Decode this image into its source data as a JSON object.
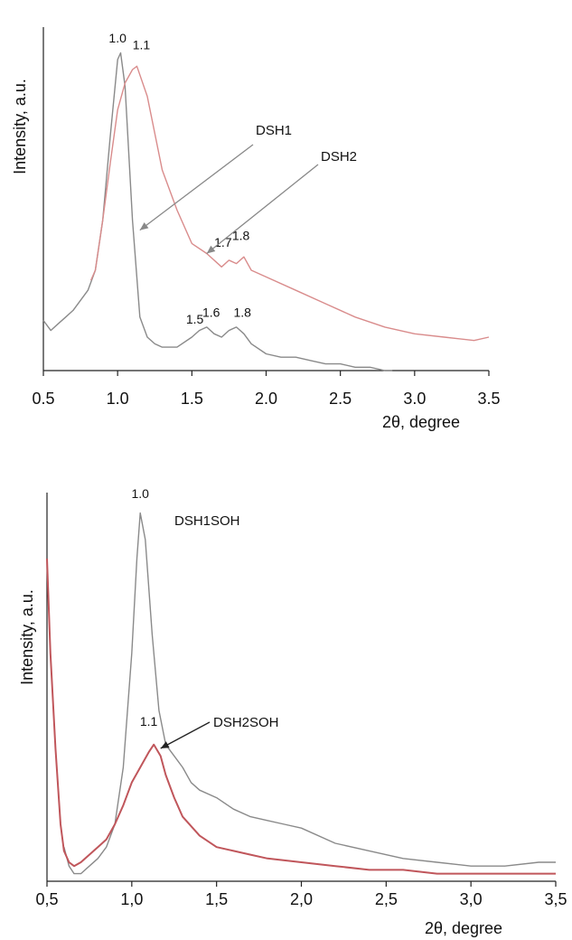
{
  "chart_data": [
    {
      "type": "line",
      "xlabel": "2θ, degree",
      "ylabel": "Intensity, a.u.",
      "xlim": [
        0.5,
        3.5
      ],
      "ylim": [
        0,
        1.0
      ],
      "x_ticks": [
        "0.5",
        "1.0",
        "1.5",
        "2.0",
        "2.5",
        "3.0",
        "3.5"
      ],
      "grid": false,
      "colors": {
        "DSH1": "#8a8a8a",
        "DSH2": "#d98c8c"
      },
      "series": [
        {
          "name": "DSH1",
          "x": [
            0.5,
            0.55,
            0.6,
            0.65,
            0.7,
            0.75,
            0.8,
            0.85,
            0.9,
            0.95,
            1.0,
            1.02,
            1.05,
            1.1,
            1.15,
            1.2,
            1.25,
            1.3,
            1.4,
            1.5,
            1.55,
            1.6,
            1.65,
            1.7,
            1.75,
            1.8,
            1.85,
            1.9,
            2.0,
            2.1,
            2.2,
            2.3,
            2.4,
            2.5,
            2.6,
            2.7,
            2.8,
            2.85
          ],
          "y": [
            0.15,
            0.12,
            0.14,
            0.16,
            0.18,
            0.21,
            0.24,
            0.3,
            0.45,
            0.7,
            0.93,
            0.95,
            0.85,
            0.45,
            0.16,
            0.1,
            0.08,
            0.07,
            0.07,
            0.1,
            0.12,
            0.13,
            0.11,
            0.1,
            0.12,
            0.13,
            0.11,
            0.08,
            0.05,
            0.04,
            0.04,
            0.03,
            0.02,
            0.02,
            0.01,
            0.01,
            0.0,
            0.0
          ]
        },
        {
          "name": "DSH2",
          "x": [
            0.82,
            0.85,
            0.9,
            0.95,
            1.0,
            1.05,
            1.1,
            1.13,
            1.2,
            1.3,
            1.4,
            1.5,
            1.6,
            1.7,
            1.75,
            1.8,
            1.85,
            1.9,
            2.0,
            2.2,
            2.4,
            2.6,
            2.8,
            3.0,
            3.2,
            3.4,
            3.5
          ],
          "y": [
            0.27,
            0.3,
            0.45,
            0.62,
            0.78,
            0.86,
            0.9,
            0.91,
            0.82,
            0.6,
            0.48,
            0.38,
            0.35,
            0.31,
            0.33,
            0.32,
            0.34,
            0.3,
            0.28,
            0.24,
            0.2,
            0.16,
            0.13,
            0.11,
            0.1,
            0.09,
            0.1
          ]
        }
      ],
      "annotations": [
        {
          "text": "1.0",
          "x": 1.0,
          "y": 0.97
        },
        {
          "text": "1.1",
          "x": 1.16,
          "y": 0.95
        },
        {
          "text": "1.7",
          "x": 1.71,
          "y": 0.36
        },
        {
          "text": "1.8",
          "x": 1.83,
          "y": 0.38
        },
        {
          "text": "1.5",
          "x": 1.52,
          "y": 0.13
        },
        {
          "text": "1.6",
          "x": 1.63,
          "y": 0.15
        },
        {
          "text": "1.8",
          "x": 1.84,
          "y": 0.15
        }
      ],
      "labels": [
        {
          "text": "DSH1",
          "series": "DSH1",
          "arrow_to": [
            1.15,
            0.42
          ]
        },
        {
          "text": "DSH2",
          "series": "DSH2",
          "arrow_to": [
            1.6,
            0.35
          ]
        }
      ]
    },
    {
      "type": "line",
      "xlabel": "2θ, degree",
      "ylabel": "Intensity, a.u.",
      "xlim": [
        0.5,
        3.5
      ],
      "ylim": [
        0,
        1.0
      ],
      "x_ticks": [
        "0,5",
        "1,0",
        "1,5",
        "2,0",
        "2,5",
        "3,0",
        "3,5"
      ],
      "grid": false,
      "colors": {
        "DSH1SOH": "#8a8a8a",
        "DSH2SOH": "#c0565b"
      },
      "series": [
        {
          "name": "DSH1SOH",
          "x": [
            0.6,
            0.63,
            0.66,
            0.7,
            0.75,
            0.8,
            0.85,
            0.9,
            0.95,
            1.0,
            1.03,
            1.05,
            1.08,
            1.12,
            1.16,
            1.2,
            1.25,
            1.3,
            1.35,
            1.4,
            1.5,
            1.6,
            1.7,
            1.8,
            1.9,
            2.0,
            2.2,
            2.4,
            2.6,
            2.8,
            3.0,
            3.2,
            3.4,
            3.5
          ],
          "y": [
            0.09,
            0.04,
            0.02,
            0.02,
            0.04,
            0.06,
            0.09,
            0.15,
            0.3,
            0.6,
            0.85,
            0.97,
            0.9,
            0.65,
            0.45,
            0.36,
            0.33,
            0.3,
            0.26,
            0.24,
            0.22,
            0.19,
            0.17,
            0.16,
            0.15,
            0.14,
            0.1,
            0.08,
            0.06,
            0.05,
            0.04,
            0.04,
            0.05,
            0.05
          ]
        },
        {
          "name": "DSH2SOH",
          "x": [
            0.5,
            0.52,
            0.55,
            0.58,
            0.6,
            0.63,
            0.66,
            0.7,
            0.75,
            0.8,
            0.85,
            0.9,
            0.95,
            1.0,
            1.05,
            1.1,
            1.13,
            1.17,
            1.2,
            1.25,
            1.3,
            1.4,
            1.5,
            1.6,
            1.7,
            1.8,
            2.0,
            2.2,
            2.4,
            2.6,
            2.8,
            3.0,
            3.2,
            3.4,
            3.5
          ],
          "y": [
            0.85,
            0.6,
            0.35,
            0.15,
            0.08,
            0.05,
            0.04,
            0.05,
            0.07,
            0.09,
            0.11,
            0.15,
            0.2,
            0.26,
            0.3,
            0.34,
            0.36,
            0.33,
            0.28,
            0.22,
            0.17,
            0.12,
            0.09,
            0.08,
            0.07,
            0.06,
            0.05,
            0.04,
            0.03,
            0.03,
            0.02,
            0.02,
            0.02,
            0.02,
            0.02
          ]
        }
      ],
      "annotations": [
        {
          "text": "1.0",
          "x": 1.05,
          "y": 1.0
        },
        {
          "text": "1.1",
          "x": 1.1,
          "y": 0.4
        }
      ],
      "labels": [
        {
          "text": "DSH1SOH",
          "series": "DSH1SOH"
        },
        {
          "text": "DSH2SOH",
          "series": "DSH2SOH",
          "arrow_to": [
            1.17,
            0.35
          ]
        }
      ]
    }
  ]
}
